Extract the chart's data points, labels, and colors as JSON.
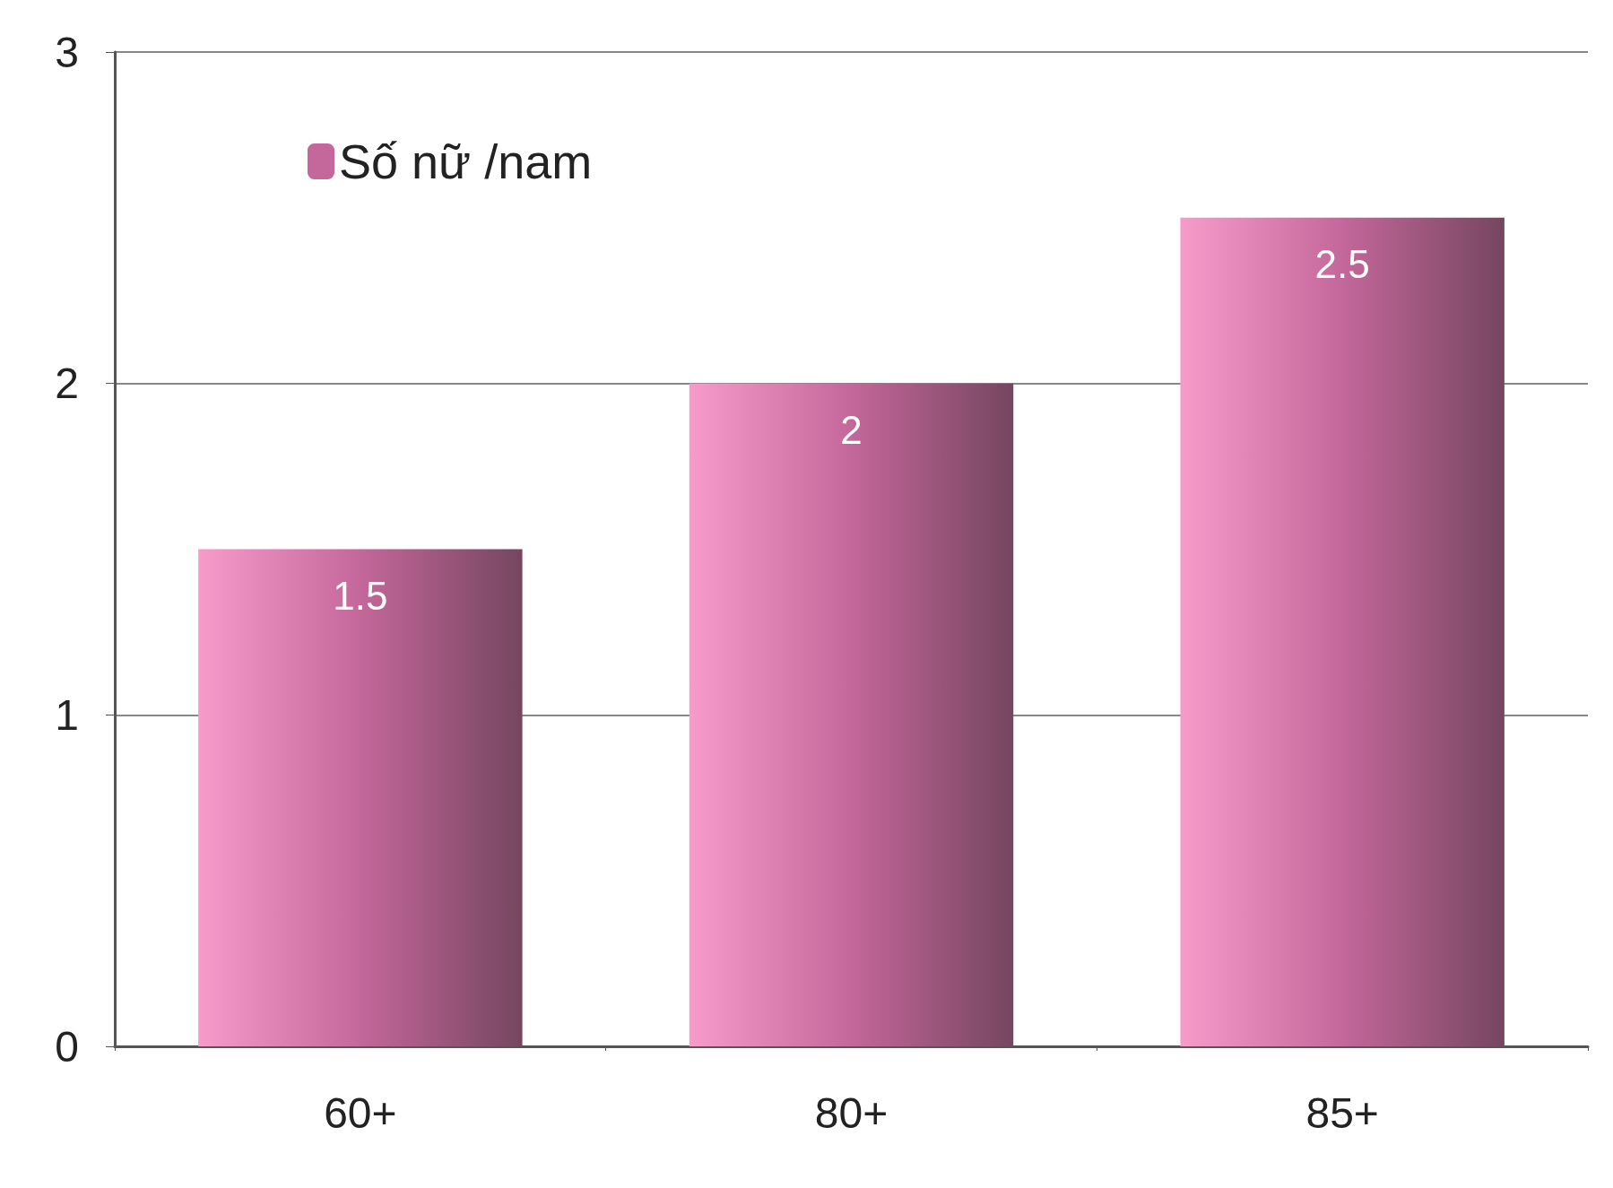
{
  "chart_data": {
    "type": "bar",
    "categories": [
      "60+",
      "80+",
      "85+"
    ],
    "series": [
      {
        "name": "Số nữ /nam",
        "color": "#c4679a",
        "values": [
          1.5,
          2,
          2.5
        ]
      }
    ],
    "ylim": [
      0,
      3
    ],
    "yticks": [
      0,
      1,
      2,
      3
    ],
    "grid": "y",
    "legend": "top left",
    "data_labels": true
  }
}
